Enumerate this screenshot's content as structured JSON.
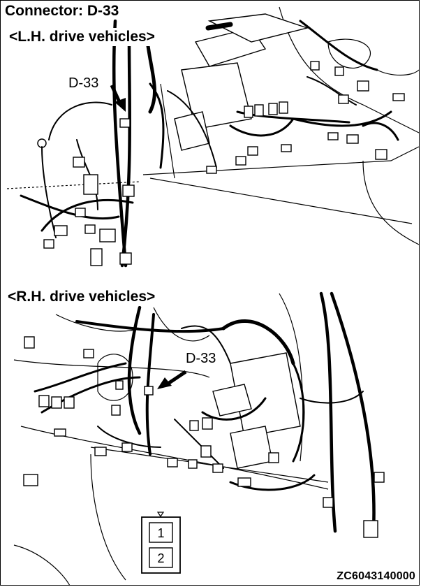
{
  "title": "Connector: D-33",
  "lh": {
    "subtitle": "<L.H. drive vehicles>",
    "callout": "D-33"
  },
  "rh": {
    "subtitle": "<R.H. drive vehicles>",
    "callout": "D-33"
  },
  "connector_face": {
    "pins": [
      "1",
      "2"
    ]
  },
  "figure_code": "ZC6043140000"
}
